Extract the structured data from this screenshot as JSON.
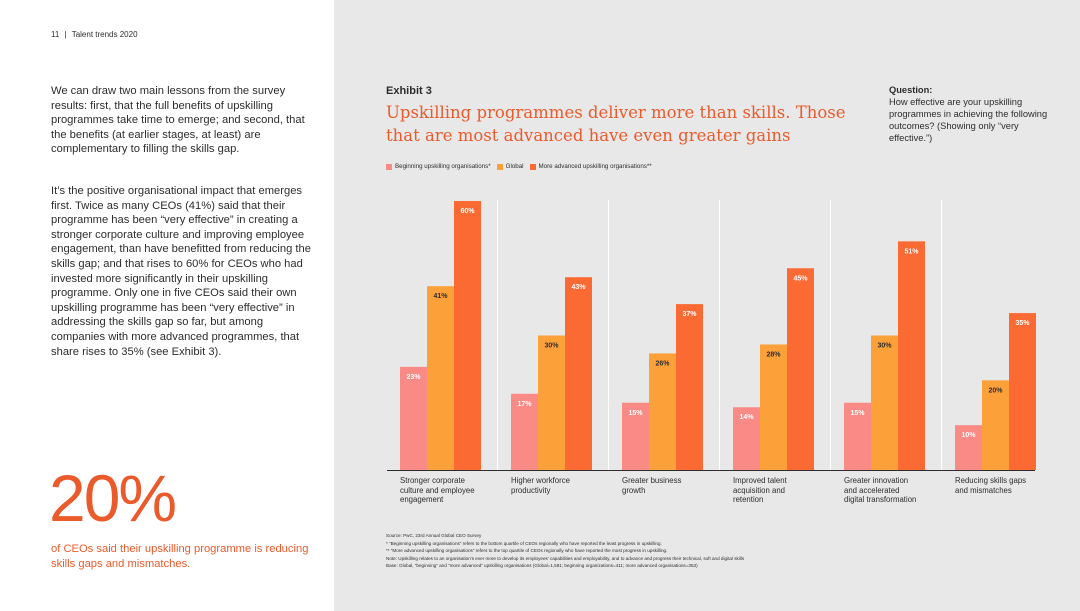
{
  "header": {
    "page_number": "11",
    "separator": "|",
    "publication": "Talent trends 2020"
  },
  "body": {
    "paragraph1": "We can draw two main lessons from the survey results: first, that the full benefits of upskilling programmes take time to emerge; and second, that the benefits (at earlier stages, at least) are complementary to filling the skills gap.",
    "paragraph2": "It’s the positive organisational impact that emerges first. Twice as many CEOs (41%) said that their programme has been “very effective” in creating a stronger corporate culture and improving employee engagement, than have benefitted from reducing the skills gap; and that rises to 60% for CEOs who had invested more significantly in their upskilling programme. Only one in five CEOs said their own upskilling programme has been “very effective” in addressing the skills gap so far, but among companies with more advanced programmes, that share rises to 35% (see Exhibit 3)."
  },
  "callout": {
    "stat": "20%",
    "caption": "of CEOs said their upskilling programme is reducing skills gaps and mismatches."
  },
  "exhibit": {
    "label": "Exhibit 3",
    "title": "Upskilling programmes deliver more than skills. Those that are most advanced have even greater gains",
    "question_label": "Question:",
    "question_text": "How effective are your upskilling programmes in achieving the following outcomes? (Showing only “very effective.”)"
  },
  "chart_data": {
    "type": "bar",
    "title": "Upskilling programmes deliver more than skills. Those that are most advanced have even greater gains",
    "xlabel": "",
    "ylabel": "",
    "ylim": [
      0,
      60
    ],
    "grid": false,
    "legend_position": "top-left",
    "categories": [
      "Stronger corporate culture and employee engagement",
      "Higher workforce productivity",
      "Greater business growth",
      "Improved talent acquisition and retention",
      "Greater innovation and accelerated digital transformation",
      "Reducing skills gaps and mismatches"
    ],
    "category_lines": [
      [
        "Stronger corporate",
        "culture and employee",
        "engagement"
      ],
      [
        "Higher workforce",
        "productivity"
      ],
      [
        "Greater business",
        "growth"
      ],
      [
        "Improved talent",
        "acquisition and",
        "retention"
      ],
      [
        "Greater innovation",
        "and accelerated",
        "digital transformation"
      ],
      [
        "Reducing skills gaps",
        "and mismatches"
      ]
    ],
    "series": [
      {
        "name": "Beginning upskilling organisations*",
        "color": "#f98a86",
        "values": [
          23,
          17,
          15,
          14,
          15,
          10
        ]
      },
      {
        "name": "Global",
        "color": "#fca03a",
        "values": [
          41,
          30,
          26,
          28,
          30,
          20
        ]
      },
      {
        "name": "More advanced upskilling organisations**",
        "color": "#fb6a33",
        "values": [
          60,
          43,
          37,
          45,
          51,
          35
        ]
      }
    ],
    "value_suffix": "%"
  },
  "source": {
    "lines": [
      "Source: PwC, 23rd Annual Global CEO Survey",
      "* “Beginning upskilling organisations” refers to the bottom quartile of CEOs regionally who have reported the least progress in upskilling.",
      "** “More advanced upskilling organisations” refers to the top quartile of CEOs regionally who have reported the most progress in upskilling.",
      "Note: Upskilling relates to an organisation’s ever more to develop its employees’ capabilities and employability, and to advance and progress their technical, soft and digital skills",
      "Base: Global, “beginning” and “more advanced” upskilling organisations (Global=1,581; beginning organizations=411; more advanced organisations=353)"
    ]
  }
}
